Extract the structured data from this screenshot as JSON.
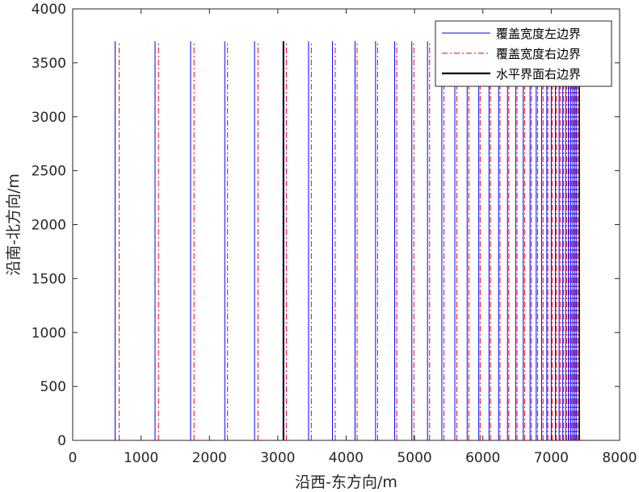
{
  "chart_data": {
    "type": "line",
    "xlabel": "沿西-东方向/m",
    "ylabel": "沿南-北方向/m",
    "xlim": [
      0,
      8000
    ],
    "ylim": [
      0,
      4000
    ],
    "xticks": [
      0,
      1000,
      2000,
      3000,
      4000,
      5000,
      6000,
      7000,
      8000
    ],
    "yticks": [
      0,
      500,
      1000,
      1500,
      2000,
      2500,
      3000,
      3500,
      4000
    ],
    "line_top": 3700,
    "legend_placement": "top-right",
    "grid": false,
    "series": [
      {
        "name": "覆盖宽度左边界",
        "color": "#0000ff",
        "style": "solid",
        "x": [
          0,
          620,
          1205,
          1725,
          2225,
          2660,
          3090,
          3450,
          3800,
          4130,
          4430,
          4710,
          4960,
          5190,
          5400,
          5590,
          5770,
          5940,
          6090,
          6230,
          6360,
          6480,
          6590,
          6690,
          6780,
          6860,
          6935,
          7000,
          7060,
          7115,
          7165,
          7210,
          7250,
          7285,
          7315,
          7340,
          7365
        ]
      },
      {
        "name": "覆盖宽度右边界",
        "color": "#ff0000",
        "style": "dashdot",
        "x": [
          680,
          1255,
          1775,
          2265,
          2710,
          3125,
          3490,
          3840,
          4160,
          4460,
          4740,
          4990,
          5220,
          5430,
          5620,
          5795,
          5960,
          6110,
          6250,
          6380,
          6500,
          6610,
          6710,
          6800,
          6880,
          6950,
          7015,
          7075,
          7130,
          7180,
          7225,
          7265,
          7300,
          7330,
          7355,
          7380,
          7400
        ]
      },
      {
        "name": "水平界面右边界",
        "color": "#000000",
        "style": "solid_thick",
        "x": [
          3080,
          7410
        ]
      }
    ]
  }
}
